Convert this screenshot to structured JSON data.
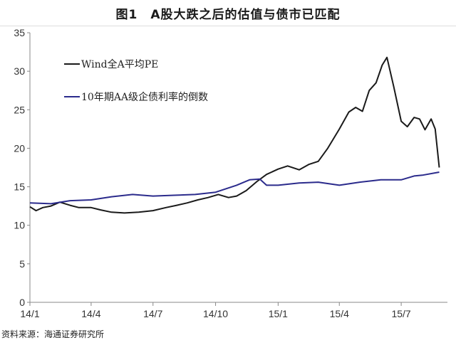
{
  "header": {
    "title": "图1　A股大跌之后的估值与债市已匹配"
  },
  "footer": {
    "source": "资料来源：海通证券研究所"
  },
  "chart_data": {
    "type": "line",
    "title": "图1　A股大跌之后的估值与债市已匹配",
    "xlabel": "",
    "ylabel": "",
    "x_tick_labels": [
      "14/1",
      "14/4",
      "14/7",
      "14/10",
      "15/1",
      "15/4",
      "15/7"
    ],
    "y_ticks": [
      0,
      5,
      10,
      15,
      20,
      25,
      30,
      35
    ],
    "ylim": [
      0,
      35
    ],
    "grid": false,
    "legend_placement": "top-left inside plot",
    "series": [
      {
        "name": "Wind全A平均PE",
        "color": "#1a1a1a",
        "points": [
          [
            "2014-01-01",
            12.4
          ],
          [
            "2014-01-10",
            11.9
          ],
          [
            "2014-01-20",
            12.3
          ],
          [
            "2014-02-01",
            12.5
          ],
          [
            "2014-02-14",
            13.0
          ],
          [
            "2014-03-01",
            12.6
          ],
          [
            "2014-03-14",
            12.3
          ],
          [
            "2014-04-01",
            12.3
          ],
          [
            "2014-04-15",
            12.0
          ],
          [
            "2014-05-01",
            11.7
          ],
          [
            "2014-05-20",
            11.6
          ],
          [
            "2014-06-10",
            11.7
          ],
          [
            "2014-07-01",
            11.9
          ],
          [
            "2014-07-20",
            12.3
          ],
          [
            "2014-08-05",
            12.6
          ],
          [
            "2014-08-20",
            12.9
          ],
          [
            "2014-09-05",
            13.3
          ],
          [
            "2014-09-20",
            13.6
          ],
          [
            "2014-10-05",
            14.0
          ],
          [
            "2014-10-20",
            13.6
          ],
          [
            "2014-11-01",
            13.8
          ],
          [
            "2014-11-15",
            14.5
          ],
          [
            "2014-12-01",
            15.7
          ],
          [
            "2014-12-15",
            16.6
          ],
          [
            "2015-01-01",
            17.3
          ],
          [
            "2015-01-15",
            17.7
          ],
          [
            "2015-02-01",
            17.2
          ],
          [
            "2015-02-15",
            17.9
          ],
          [
            "2015-03-01",
            18.3
          ],
          [
            "2015-03-15",
            20.0
          ],
          [
            "2015-04-01",
            22.5
          ],
          [
            "2015-04-15",
            24.7
          ],
          [
            "2015-04-25",
            25.3
          ],
          [
            "2015-05-05",
            24.8
          ],
          [
            "2015-05-15",
            27.5
          ],
          [
            "2015-05-25",
            28.5
          ],
          [
            "2015-06-03",
            30.8
          ],
          [
            "2015-06-10",
            31.8
          ],
          [
            "2015-06-20",
            28.0
          ],
          [
            "2015-07-01",
            23.5
          ],
          [
            "2015-07-10",
            22.8
          ],
          [
            "2015-07-20",
            24.0
          ],
          [
            "2015-07-28",
            23.8
          ],
          [
            "2015-08-05",
            22.4
          ],
          [
            "2015-08-14",
            23.8
          ],
          [
            "2015-08-20",
            22.5
          ],
          [
            "2015-08-26",
            17.5
          ]
        ]
      },
      {
        "name": "10年期AA级企债利率的倒数",
        "color": "#2b2b8c",
        "points": [
          [
            "2014-01-01",
            12.9
          ],
          [
            "2014-02-01",
            12.8
          ],
          [
            "2014-03-01",
            13.2
          ],
          [
            "2014-04-01",
            13.3
          ],
          [
            "2014-05-01",
            13.7
          ],
          [
            "2014-06-01",
            14.0
          ],
          [
            "2014-07-01",
            13.8
          ],
          [
            "2014-08-01",
            13.9
          ],
          [
            "2014-09-01",
            14.0
          ],
          [
            "2014-10-01",
            14.3
          ],
          [
            "2014-11-01",
            15.2
          ],
          [
            "2014-11-20",
            15.9
          ],
          [
            "2014-12-05",
            16.0
          ],
          [
            "2014-12-15",
            15.2
          ],
          [
            "2015-01-01",
            15.2
          ],
          [
            "2015-02-01",
            15.5
          ],
          [
            "2015-03-01",
            15.6
          ],
          [
            "2015-04-01",
            15.2
          ],
          [
            "2015-05-01",
            15.6
          ],
          [
            "2015-06-01",
            15.9
          ],
          [
            "2015-07-01",
            15.9
          ],
          [
            "2015-07-20",
            16.4
          ],
          [
            "2015-08-01",
            16.5
          ],
          [
            "2015-08-26",
            16.9
          ]
        ]
      }
    ]
  }
}
